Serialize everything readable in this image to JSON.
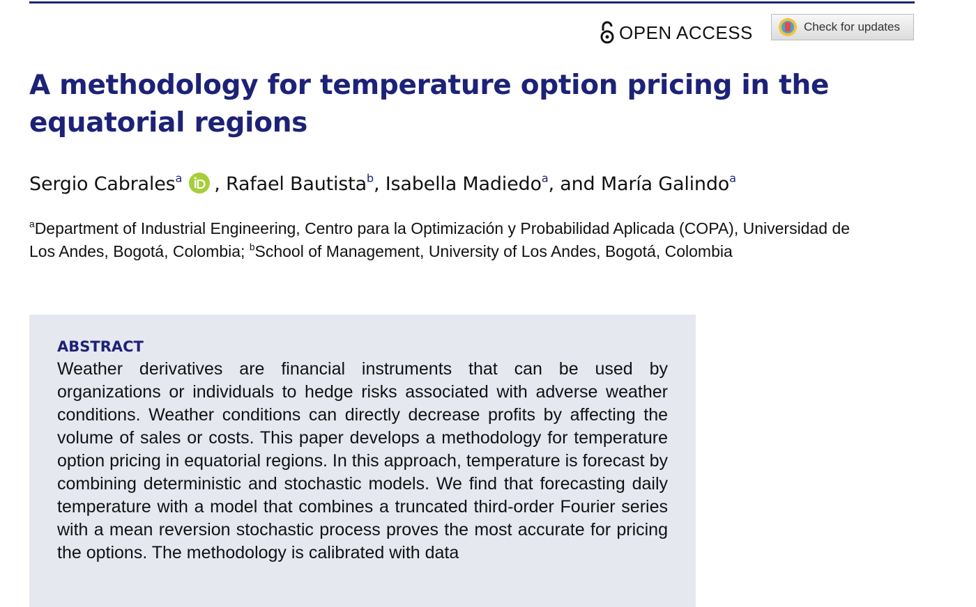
{
  "header": {
    "open_access": "OPEN ACCESS",
    "check_updates": "Check for updates"
  },
  "title": "A methodology for temperature option pricing in the equatorial regions",
  "authors": [
    {
      "name": "Sergio Cabrales",
      "affiliation": "a"
    },
    {
      "name": "Rafael Bautista",
      "affiliation": "b"
    },
    {
      "name": "Isabella Madiedo",
      "affiliation": "a"
    },
    {
      "name": "María Galindo",
      "affiliation": "a"
    }
  ],
  "author_separators": [
    ", ",
    ", ",
    ", and "
  ],
  "affiliations": [
    {
      "label": "a",
      "text": "Department of Industrial Engineering, Centro para la Optimización y Probabilidad Aplicada (COPA), Universidad de Los Andes, Bogotá, Colombia; "
    },
    {
      "label": "b",
      "text": "School of Management, University of Los Andes, Bogotá, Colombia"
    }
  ],
  "abstract": {
    "heading": "ABSTRACT",
    "text": "Weather derivatives are financial instruments that can be used by organizations or individuals to hedge risks associated with adverse weather conditions. Weather conditions can directly decrease profits by affecting the volume of sales or costs. This paper develops a methodology for temperature option pricing in equatorial regions. In this approach, temperature is forecast by combining deterministic and stochastic models. We find that forecasting daily temperature with a model that combines a truncated third-order Fourier series with a mean reversion stochastic process proves the most accurate for pricing the options. The methodology is calibrated with data"
  }
}
